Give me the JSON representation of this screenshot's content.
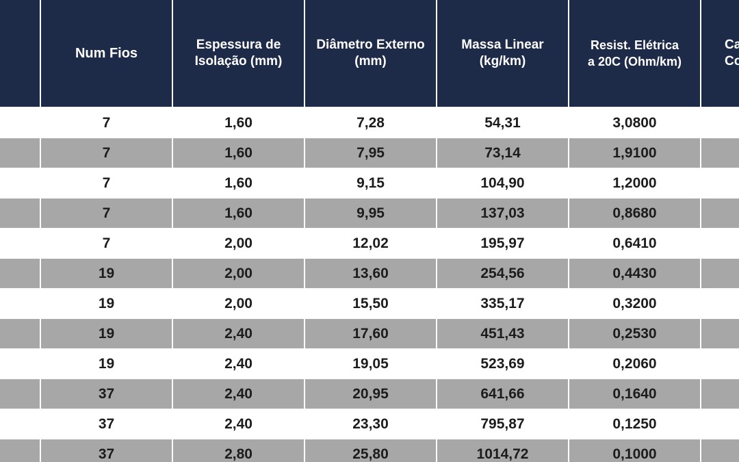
{
  "headers": {
    "col0": "",
    "num_fios": "Num Fios",
    "espessura_line1": "Espessura de",
    "espessura_line2": "Isolação (mm)",
    "diametro_line1": "Diâmetro Externo",
    "diametro_line2": "(mm)",
    "massa_line1": "Massa Linear",
    "massa_line2": "(kg/km)",
    "resist_line1": "Resist. Elétrica",
    "resist_line2": "a 20C (Ohm/km)",
    "last_line1": "Ca",
    "last_line2": "Co"
  },
  "rows": [
    {
      "num_fios": "7",
      "espessura": "1,60",
      "diametro": "7,28",
      "massa": "54,31",
      "resist": "3,0800"
    },
    {
      "num_fios": "7",
      "espessura": "1,60",
      "diametro": "7,95",
      "massa": "73,14",
      "resist": "1,9100"
    },
    {
      "num_fios": "7",
      "espessura": "1,60",
      "diametro": "9,15",
      "massa": "104,90",
      "resist": "1,2000"
    },
    {
      "num_fios": "7",
      "espessura": "1,60",
      "diametro": "9,95",
      "massa": "137,03",
      "resist": "0,8680"
    },
    {
      "num_fios": "7",
      "espessura": "2,00",
      "diametro": "12,02",
      "massa": "195,97",
      "resist": "0,6410"
    },
    {
      "num_fios": "19",
      "espessura": "2,00",
      "diametro": "13,60",
      "massa": "254,56",
      "resist": "0,4430"
    },
    {
      "num_fios": "19",
      "espessura": "2,00",
      "diametro": "15,50",
      "massa": "335,17",
      "resist": "0,3200"
    },
    {
      "num_fios": "19",
      "espessura": "2,40",
      "diametro": "17,60",
      "massa": "451,43",
      "resist": "0,2530"
    },
    {
      "num_fios": "19",
      "espessura": "2,40",
      "diametro": "19,05",
      "massa": "523,69",
      "resist": "0,2060"
    },
    {
      "num_fios": "37",
      "espessura": "2,40",
      "diametro": "20,95",
      "massa": "641,66",
      "resist": "0,1640"
    },
    {
      "num_fios": "37",
      "espessura": "2,40",
      "diametro": "23,30",
      "massa": "795,87",
      "resist": "0,1250"
    },
    {
      "num_fios": "37",
      "espessura": "2,80",
      "diametro": "25,80",
      "massa": "1014,72",
      "resist": "0,1000"
    }
  ],
  "colors": {
    "header_bg": "#1d2a48",
    "header_text": "#ffffff",
    "row_alt_bg": "#a7a7a7",
    "row_bg": "#ffffff",
    "cell_text": "#1c1c1c"
  }
}
